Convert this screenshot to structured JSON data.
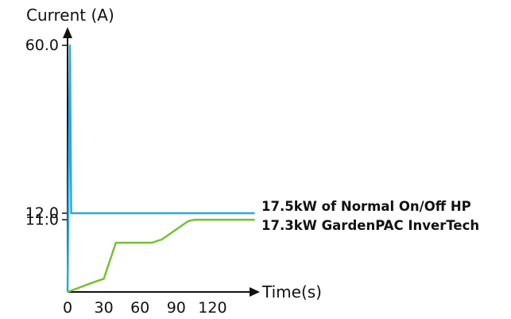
{
  "chart_data": {
    "type": "line",
    "ylabel": "Current (A)",
    "xlabel": "Time(s)",
    "y_tick_labels": [
      "60.0",
      "12.0",
      "11.0"
    ],
    "y_ticks": [
      60.0,
      12.0,
      11.0
    ],
    "x_tick_labels": [
      "0",
      "30",
      "60",
      "90",
      "120"
    ],
    "x_ticks": [
      0,
      30,
      60,
      90,
      120
    ],
    "xlim": [
      0,
      155
    ],
    "ylim": [
      0,
      60
    ],
    "y_scale": "broken",
    "grid": false,
    "series": [
      {
        "name": "17.5kW of Normal On/Off HP",
        "color": "#2ba8e0",
        "x": [
          0,
          2,
          3,
          155
        ],
        "y": [
          0,
          60,
          12,
          12
        ]
      },
      {
        "name": "17.3kW GardenPAC InverTech",
        "color": "#74c132",
        "x": [
          0,
          22,
          30,
          40,
          70,
          78,
          100,
          105,
          120,
          155
        ],
        "y": [
          0,
          1.5,
          2,
          7.5,
          7.5,
          8,
          10.8,
          11,
          11,
          11
        ]
      }
    ]
  }
}
